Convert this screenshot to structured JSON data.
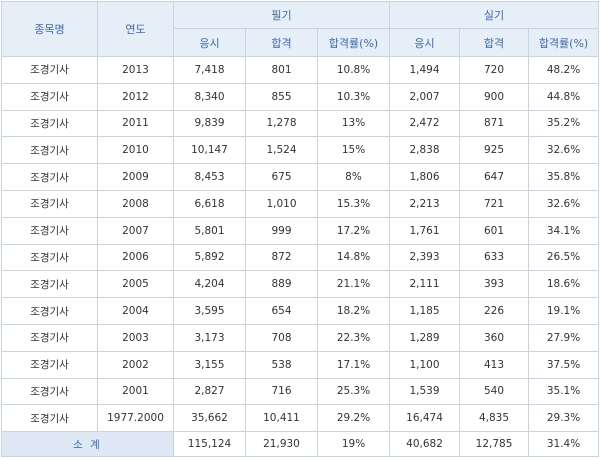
{
  "headers": {
    "subject": "종목명",
    "year": "연도",
    "written": "필기",
    "practical": "실기",
    "applicants": "응시",
    "passed": "합격",
    "pass_rate": "합격률(%)"
  },
  "rows": [
    {
      "subject": "조경기사",
      "year": "2013",
      "w_app": "7,418",
      "w_pass": "801",
      "w_rate": "10.8%",
      "p_app": "1,494",
      "p_pass": "720",
      "p_rate": "48.2%"
    },
    {
      "subject": "조경기사",
      "year": "2012",
      "w_app": "8,340",
      "w_pass": "855",
      "w_rate": "10.3%",
      "p_app": "2,007",
      "p_pass": "900",
      "p_rate": "44.8%"
    },
    {
      "subject": "조경기사",
      "year": "2011",
      "w_app": "9,839",
      "w_pass": "1,278",
      "w_rate": "13%",
      "p_app": "2,472",
      "p_pass": "871",
      "p_rate": "35.2%"
    },
    {
      "subject": "조경기사",
      "year": "2010",
      "w_app": "10,147",
      "w_pass": "1,524",
      "w_rate": "15%",
      "p_app": "2,838",
      "p_pass": "925",
      "p_rate": "32.6%"
    },
    {
      "subject": "조경기사",
      "year": "2009",
      "w_app": "8,453",
      "w_pass": "675",
      "w_rate": "8%",
      "p_app": "1,806",
      "p_pass": "647",
      "p_rate": "35.8%"
    },
    {
      "subject": "조경기사",
      "year": "2008",
      "w_app": "6,618",
      "w_pass": "1,010",
      "w_rate": "15.3%",
      "p_app": "2,213",
      "p_pass": "721",
      "p_rate": "32.6%"
    },
    {
      "subject": "조경기사",
      "year": "2007",
      "w_app": "5,801",
      "w_pass": "999",
      "w_rate": "17.2%",
      "p_app": "1,761",
      "p_pass": "601",
      "p_rate": "34.1%"
    },
    {
      "subject": "조경기사",
      "year": "2006",
      "w_app": "5,892",
      "w_pass": "872",
      "w_rate": "14.8%",
      "p_app": "2,393",
      "p_pass": "633",
      "p_rate": "26.5%"
    },
    {
      "subject": "조경기사",
      "year": "2005",
      "w_app": "4,204",
      "w_pass": "889",
      "w_rate": "21.1%",
      "p_app": "2,111",
      "p_pass": "393",
      "p_rate": "18.6%"
    },
    {
      "subject": "조경기사",
      "year": "2004",
      "w_app": "3,595",
      "w_pass": "654",
      "w_rate": "18.2%",
      "p_app": "1,185",
      "p_pass": "226",
      "p_rate": "19.1%"
    },
    {
      "subject": "조경기사",
      "year": "2003",
      "w_app": "3,173",
      "w_pass": "708",
      "w_rate": "22.3%",
      "p_app": "1,289",
      "p_pass": "360",
      "p_rate": "27.9%"
    },
    {
      "subject": "조경기사",
      "year": "2002",
      "w_app": "3,155",
      "w_pass": "538",
      "w_rate": "17.1%",
      "p_app": "1,100",
      "p_pass": "413",
      "p_rate": "37.5%"
    },
    {
      "subject": "조경기사",
      "year": "2001",
      "w_app": "2,827",
      "w_pass": "716",
      "w_rate": "25.3%",
      "p_app": "1,539",
      "p_pass": "540",
      "p_rate": "35.1%"
    },
    {
      "subject": "조경기사",
      "year": "1977.2000",
      "w_app": "35,662",
      "w_pass": "10,411",
      "w_rate": "29.2%",
      "p_app": "16,474",
      "p_pass": "4,835",
      "p_rate": "29.3%"
    }
  ],
  "total": {
    "label": "소 계",
    "w_app": "115,124",
    "w_pass": "21,930",
    "w_rate": "19%",
    "p_app": "40,682",
    "p_pass": "12,785",
    "p_rate": "31.4%"
  }
}
